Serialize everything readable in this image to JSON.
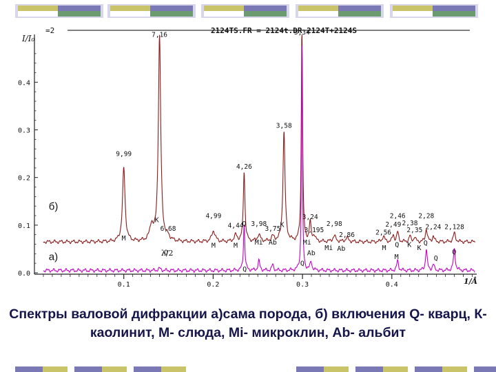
{
  "decor_colors": [
    "#7b79b5",
    "#c9c36a",
    "#ffffff",
    "#6d9b70",
    "#d8d6ea"
  ],
  "chart_data": {
    "type": "line",
    "header": "2124TS.FR = 2124t.DR 2124T+2124S",
    "header_prefix": "=2",
    "ylabel": "I/I₀",
    "xlabel": "1/Å",
    "xlim": [
      0.0,
      0.495
    ],
    "ylim": [
      0.0,
      0.48
    ],
    "x_ticks": [
      "0.1",
      "0.2",
      "0.3",
      "0.4"
    ],
    "x_tick_values": [
      0.1,
      0.2,
      0.3,
      0.4
    ],
    "y_ticks": [
      "0.0",
      "0.1",
      "0.2",
      "0.3",
      "0.4"
    ],
    "y_tick_values": [
      0.0,
      0.1,
      0.2,
      0.3,
      0.4
    ],
    "series": [
      {
        "name": "б)",
        "color": "#8b1a1a",
        "baseline": 0.065,
        "peaks": [
          {
            "x": 0.1,
            "h": 0.155,
            "w": 0.0017
          },
          {
            "x": 0.131,
            "h": 0.032,
            "w": 0.0022
          },
          {
            "x": 0.14,
            "h": 0.43,
            "w": 0.0016
          },
          {
            "x": 0.1496,
            "h": 0.008,
            "w": 0.002
          },
          {
            "x": 0.2004,
            "h": 0.023,
            "w": 0.0022
          },
          {
            "x": 0.2252,
            "h": 0.013,
            "w": 0.002
          },
          {
            "x": 0.2347,
            "h": 0.148,
            "w": 0.0011
          },
          {
            "x": 0.2512,
            "h": 0.014,
            "w": 0.002
          },
          {
            "x": 0.2667,
            "h": 0.01,
            "w": 0.002
          },
          {
            "x": 0.2793,
            "h": 0.23,
            "w": 0.0014
          },
          {
            "x": 0.2994,
            "h": 0.48,
            "w": 0.0008
          },
          {
            "x": 0.3086,
            "h": 0.04,
            "w": 0.0012
          },
          {
            "x": 0.313,
            "h": 0.012,
            "w": 0.0015
          },
          {
            "x": 0.3356,
            "h": 0.012,
            "w": 0.002
          },
          {
            "x": 0.3497,
            "h": 0.008,
            "w": 0.002
          },
          {
            "x": 0.3906,
            "h": 0.012,
            "w": 0.0015
          },
          {
            "x": 0.4016,
            "h": 0.014,
            "w": 0.0012
          },
          {
            "x": 0.4065,
            "h": 0.02,
            "w": 0.0012
          },
          {
            "x": 0.4202,
            "h": 0.012,
            "w": 0.0012
          },
          {
            "x": 0.4255,
            "h": 0.01,
            "w": 0.0012
          },
          {
            "x": 0.4386,
            "h": 0.028,
            "w": 0.0012
          },
          {
            "x": 0.4464,
            "h": 0.012,
            "w": 0.0012
          },
          {
            "x": 0.47,
            "h": 0.018,
            "w": 0.0015
          }
        ],
        "peak_labels": [
          {
            "x": 0.1,
            "y": 0.245,
            "text": "9,99"
          },
          {
            "x": 0.14,
            "y": 0.495,
            "text": "7,16"
          },
          {
            "x": 0.1496,
            "y": 0.088,
            "text": "6,68"
          },
          {
            "x": 0.2004,
            "y": 0.115,
            "text": "4,99"
          },
          {
            "x": 0.2252,
            "y": 0.095,
            "text": "4,44"
          },
          {
            "x": 0.2347,
            "y": 0.218,
            "text": "4,26"
          },
          {
            "x": 0.2512,
            "y": 0.098,
            "text": "3,98"
          },
          {
            "x": 0.2667,
            "y": 0.088,
            "text": "3,75"
          },
          {
            "x": 0.2793,
            "y": 0.304,
            "text": "3,58"
          },
          {
            "x": 0.2994,
            "y": 0.5,
            "text": "3,34"
          },
          {
            "x": 0.3086,
            "y": 0.113,
            "text": "3,24"
          },
          {
            "x": 0.313,
            "y": 0.085,
            "text": "3,195"
          },
          {
            "x": 0.3356,
            "y": 0.098,
            "text": "2,98"
          },
          {
            "x": 0.3497,
            "y": 0.075,
            "text": "2,86"
          },
          {
            "x": 0.3906,
            "y": 0.08,
            "text": "2,56"
          },
          {
            "x": 0.4016,
            "y": 0.097,
            "text": "2,49"
          },
          {
            "x": 0.4065,
            "y": 0.115,
            "text": "2,46"
          },
          {
            "x": 0.4202,
            "y": 0.1,
            "text": "2,38"
          },
          {
            "x": 0.4255,
            "y": 0.085,
            "text": "2,35"
          },
          {
            "x": 0.4386,
            "y": 0.115,
            "text": "2,28"
          },
          {
            "x": 0.4464,
            "y": 0.092,
            "text": "2,24"
          },
          {
            "x": 0.47,
            "y": 0.092,
            "text": "2,128"
          }
        ],
        "mineral_labels": [
          {
            "x": 0.1,
            "y": 0.068,
            "text": "M"
          },
          {
            "x": 0.137,
            "y": 0.106,
            "text": "K"
          },
          {
            "x": 0.2004,
            "y": 0.053,
            "text": "M"
          },
          {
            "x": 0.2252,
            "y": 0.053,
            "text": "M"
          },
          {
            "x": 0.2347,
            "y": 0.098,
            "text": "Q"
          },
          {
            "x": 0.2512,
            "y": 0.059,
            "text": "Mi"
          },
          {
            "x": 0.2667,
            "y": 0.059,
            "text": "Ab"
          },
          {
            "x": 0.2772,
            "y": 0.096,
            "text": "K"
          },
          {
            "x": 0.3052,
            "y": 0.059,
            "text": "Mi"
          },
          {
            "x": 0.3098,
            "y": 0.037,
            "text": "Ab"
          },
          {
            "x": 0.3294,
            "y": 0.048,
            "text": "Mi"
          },
          {
            "x": 0.3434,
            "y": 0.046,
            "text": "Ab"
          },
          {
            "x": 0.3913,
            "y": 0.048,
            "text": "M"
          },
          {
            "x": 0.4058,
            "y": 0.054,
            "text": "Q"
          },
          {
            "x": 0.4196,
            "y": 0.054,
            "text": "K"
          },
          {
            "x": 0.4306,
            "y": 0.048,
            "text": "K"
          },
          {
            "x": 0.4378,
            "y": 0.058,
            "text": "Q"
          }
        ]
      },
      {
        "name": "а)",
        "color": "#c400c4",
        "baseline": 0.005,
        "peaks": [
          {
            "x": 0.14,
            "h": 0.004,
            "w": 0.0018
          },
          {
            "x": 0.2347,
            "h": 0.098,
            "w": 0.0009
          },
          {
            "x": 0.2512,
            "h": 0.02,
            "w": 0.0012
          },
          {
            "x": 0.2667,
            "h": 0.012,
            "w": 0.0012
          },
          {
            "x": 0.2994,
            "h": 0.475,
            "w": 0.00065
          },
          {
            "x": 0.3096,
            "h": 0.018,
            "w": 0.0012
          },
          {
            "x": 0.4065,
            "h": 0.02,
            "w": 0.0012
          },
          {
            "x": 0.4386,
            "h": 0.045,
            "w": 0.0011
          },
          {
            "x": 0.4464,
            "h": 0.012,
            "w": 0.0012
          },
          {
            "x": 0.47,
            "h": 0.045,
            "w": 0.0012
          }
        ],
        "mineral_labels": [
          {
            "x": 0.1473,
            "y": 0.038,
            "text": "Q"
          },
          {
            "x": 0.2353,
            "y": 0.003,
            "text": "Q"
          },
          {
            "x": 0.2998,
            "y": 0.015,
            "text": "Q"
          },
          {
            "x": 0.4053,
            "y": 0.029,
            "text": "M"
          },
          {
            "x": 0.4493,
            "y": 0.026,
            "text": "Q"
          },
          {
            "x": 0.4698,
            "y": 0.039,
            "text": "Q"
          }
        ],
        "extra_label": {
          "x": 0.1486,
          "y": 0.036,
          "text": "λ/2"
        }
      }
    ],
    "series_labels": [
      {
        "x": 0.016,
        "y": 0.132,
        "text": "б)"
      },
      {
        "x": 0.016,
        "y": 0.027,
        "text": "а)"
      }
    ]
  },
  "caption": "Спектры валовой дифракции а)сама порода, б) включения Q- кварц, К- каолинит, М- слюда, Mi- микроклин, Ab- альбит"
}
